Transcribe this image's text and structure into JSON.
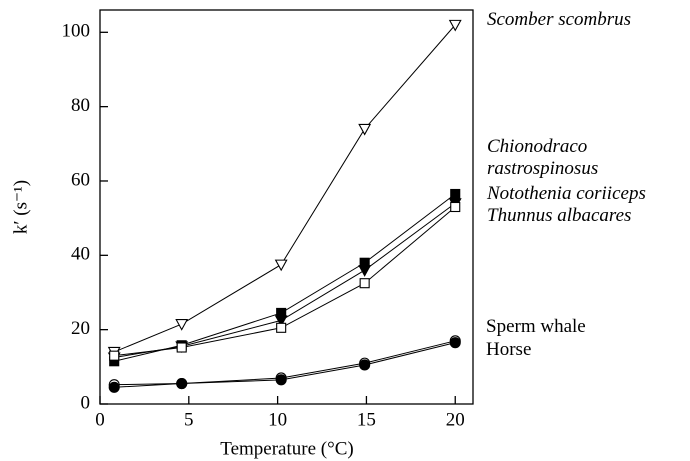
{
  "chart_data": {
    "type": "line",
    "xlabel": "Temperature (°C)",
    "ylabel": "k′ (s⁻¹)",
    "xlim": [
      0,
      21
    ],
    "ylim": [
      0,
      106
    ],
    "xticks": [
      0,
      5,
      10,
      15,
      20
    ],
    "yticks": [
      0,
      20,
      40,
      60,
      80,
      100
    ],
    "x": [
      0.8,
      4.6,
      10.2,
      14.9,
      20
    ],
    "series": [
      {
        "name": "Scomber scombrus",
        "color": "#000000",
        "marker": "triangle-down",
        "filled": false,
        "label_style": "italic",
        "values": [
          14,
          21.5,
          37.5,
          74,
          102
        ]
      },
      {
        "name": "Chionodraco rastrospinosus",
        "color": "#000000",
        "marker": "square",
        "filled": true,
        "label_style": "italic",
        "values": [
          11.5,
          15.8,
          24.5,
          38,
          56.5
        ]
      },
      {
        "name": "Notothenia coriiceps",
        "color": "#000000",
        "marker": "triangle-down",
        "filled": true,
        "label_style": "italic",
        "values": [
          12.5,
          15.5,
          22.5,
          36,
          54
        ]
      },
      {
        "name": "Thunnus albacares",
        "color": "#000000",
        "marker": "square",
        "filled": false,
        "label_style": "italic",
        "values": [
          13,
          15.2,
          20.5,
          32.5,
          53
        ]
      },
      {
        "name": "Sperm whale",
        "color": "#000000",
        "marker": "circle",
        "filled": false,
        "label_style": "normal",
        "values": [
          5.2,
          5.5,
          7,
          11,
          17
        ]
      },
      {
        "name": "Horse",
        "color": "#000000",
        "marker": "circle",
        "filled": true,
        "label_style": "normal",
        "values": [
          4.5,
          5.5,
          6.5,
          10.5,
          16.5
        ]
      }
    ]
  }
}
